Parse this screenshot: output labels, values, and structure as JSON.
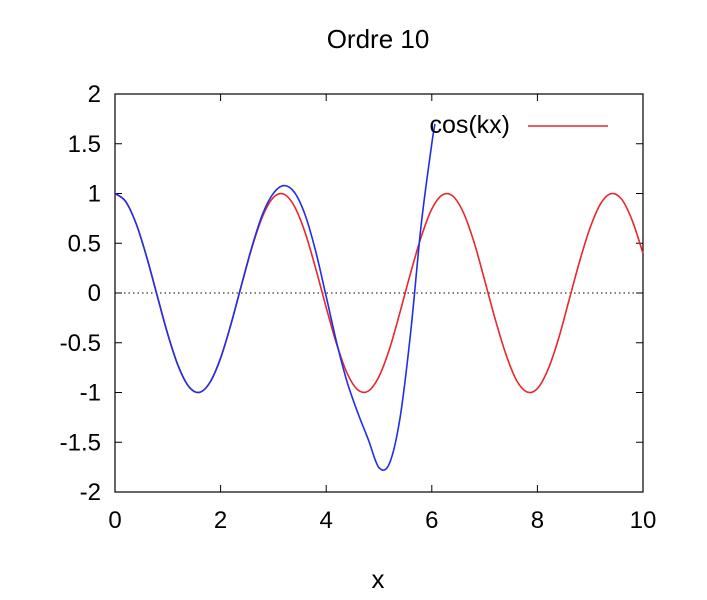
{
  "chart_data": {
    "type": "line",
    "title": "Ordre 10",
    "xlabel": "x",
    "ylabel": "",
    "xlim": [
      0,
      10
    ],
    "ylim": [
      -2,
      2
    ],
    "xticks": [
      0,
      2,
      4,
      6,
      8,
      10
    ],
    "xtick_labels": [
      "0",
      "2",
      "4",
      "6",
      "8",
      "10"
    ],
    "yticks": [
      -2,
      -1.5,
      -1,
      -0.5,
      0,
      0.5,
      1,
      1.5,
      2
    ],
    "ytick_labels": [
      "-2",
      "-1.5",
      "-1",
      "-0.5",
      "0",
      "0.5",
      "1",
      "1.5",
      "2"
    ],
    "zero_line": "dotted",
    "grid": false,
    "legend_position": "top-right",
    "series": [
      {
        "name": "cos(kx)",
        "color": "#e8262b",
        "x": [
          0,
          0.2,
          0.4,
          0.6,
          0.8,
          1.0,
          1.2,
          1.4,
          1.6,
          1.8,
          2.0,
          2.2,
          2.4,
          2.6,
          2.8,
          3.0,
          3.2,
          3.4,
          3.6,
          3.8,
          4.0,
          4.2,
          4.4,
          4.6,
          4.8,
          5.0,
          5.2,
          5.4,
          5.6,
          5.8,
          6.0,
          6.2,
          6.4,
          6.6,
          6.8,
          7.0,
          7.2,
          7.4,
          7.6,
          7.8,
          8.0,
          8.2,
          8.4,
          8.6,
          8.8,
          9.0,
          9.2,
          9.4,
          9.6,
          9.8,
          10.0
        ],
        "y": [
          1.0,
          0.921,
          0.697,
          0.362,
          -0.029,
          -0.416,
          -0.737,
          -0.942,
          -0.998,
          -0.897,
          -0.654,
          -0.307,
          0.087,
          0.468,
          0.776,
          0.96,
          0.993,
          0.869,
          0.608,
          0.248,
          -0.146,
          -0.518,
          -0.811,
          -0.974,
          -0.985,
          -0.839,
          -0.56,
          -0.189,
          0.204,
          0.565,
          0.844,
          0.986,
          0.973,
          0.806,
          0.511,
          0.13,
          -0.262,
          -0.61,
          -0.873,
          -0.994,
          -0.96,
          -0.77,
          -0.46,
          -0.071,
          0.319,
          0.658,
          0.9,
          0.999,
          0.939,
          0.723,
          0.398
        ]
      },
      {
        "name": "",
        "color": "#1f2fe8",
        "x": [
          0,
          0.2,
          0.4,
          0.6,
          0.8,
          1.0,
          1.2,
          1.4,
          1.6,
          1.8,
          2.0,
          2.2,
          2.4,
          2.6,
          2.8,
          3.0,
          3.2,
          3.4,
          3.6,
          3.8,
          4.0,
          4.2,
          4.4,
          4.6,
          4.8,
          5.0,
          5.2,
          5.4,
          5.6,
          5.8,
          6.0,
          6.06
        ],
        "y": [
          1.0,
          0.921,
          0.697,
          0.362,
          -0.029,
          -0.416,
          -0.737,
          -0.942,
          -0.998,
          -0.897,
          -0.654,
          -0.306,
          0.09,
          0.477,
          0.8,
          1.002,
          1.08,
          1.01,
          0.786,
          0.421,
          -0.035,
          -0.502,
          -0.901,
          -1.206,
          -1.477,
          -1.756,
          -1.71,
          -1.25,
          -0.394,
          0.69,
          1.5,
          1.7
        ]
      }
    ]
  }
}
